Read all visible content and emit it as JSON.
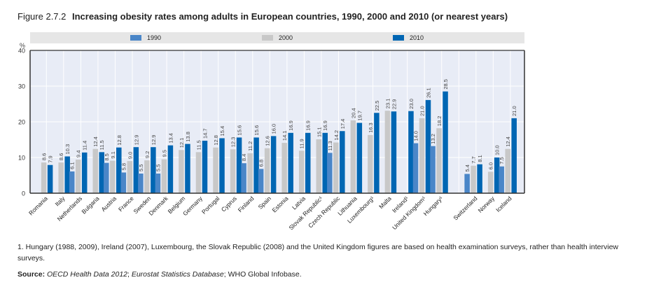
{
  "figure": {
    "number": "Figure 2.7.2",
    "title": "Increasing obesity rates among adults in European countries, 1990, 2000 and 2010 (or nearest years)"
  },
  "chart_data": {
    "type": "bar",
    "title": "Increasing obesity rates among adults in European countries, 1990, 2000 and 2010 (or nearest years)",
    "xlabel": "",
    "ylabel": "%",
    "ylim": [
      0,
      40
    ],
    "yticks": [
      0,
      10,
      20,
      30,
      40
    ],
    "grid": true,
    "legend_position": "top",
    "categories": [
      "Romania",
      "Italy",
      "Netherlands",
      "Bulgaria",
      "Austria",
      "France",
      "Sweden",
      "Denmark",
      "Belgium",
      "Germany",
      "Portugal",
      "Cyprus",
      "Finland",
      "Spain",
      "Estonia",
      "Latvia",
      "Slovak Republic¹",
      "Czech Republic",
      "Lithuania",
      "Luxembourg¹",
      "Malta",
      "Ireland¹",
      "United Kingdom¹",
      "Hungary¹",
      "",
      "Switzerland",
      "Norway",
      "Iceland"
    ],
    "series": [
      {
        "name": "1990",
        "color": "#4a86c8",
        "values": [
          null,
          null,
          6.1,
          null,
          8.5,
          5.8,
          5.5,
          5.5,
          null,
          null,
          null,
          null,
          8.4,
          6.8,
          null,
          null,
          null,
          11.3,
          null,
          null,
          null,
          null,
          14.0,
          13.2,
          null,
          5.4,
          null,
          7.5
        ]
      },
      {
        "name": "2000",
        "color": "#c8c8c8",
        "values": [
          8.6,
          8.6,
          9.4,
          12.4,
          9.1,
          9.0,
          9.2,
          9.5,
          12.1,
          11.5,
          12.8,
          12.3,
          11.2,
          12.6,
          14.1,
          11.9,
          15.1,
          14.2,
          20.4,
          16.3,
          23.1,
          null,
          21.0,
          18.2,
          null,
          7.7,
          6.0,
          12.4
        ]
      },
      {
        "name": "2010",
        "color": "#0066b3",
        "values": [
          7.9,
          10.3,
          11.4,
          11.5,
          12.8,
          12.9,
          12.9,
          13.4,
          13.8,
          14.7,
          15.4,
          15.6,
          15.6,
          16.0,
          16.9,
          16.9,
          16.9,
          17.4,
          19.7,
          22.5,
          22.9,
          23.0,
          26.1,
          28.5,
          null,
          8.1,
          10.0,
          21.0
        ]
      }
    ]
  },
  "footnote": "1. Hungary (1988, 2009), Ireland (2007), Luxembourg, the Slovak Republic (2008) and the United Kingdom figures are based on health examination surveys, rather than health interview surveys.",
  "source": {
    "label": "Source:",
    "part1": "OECD Health Data 2012",
    "sep1": "; ",
    "part2": "Eurostat Statistics Database",
    "part3": "; WHO Global Infobase."
  },
  "colors": {
    "plot_bg": "#e8ecf6",
    "grid": "#ffffff",
    "axis": "#333333"
  }
}
